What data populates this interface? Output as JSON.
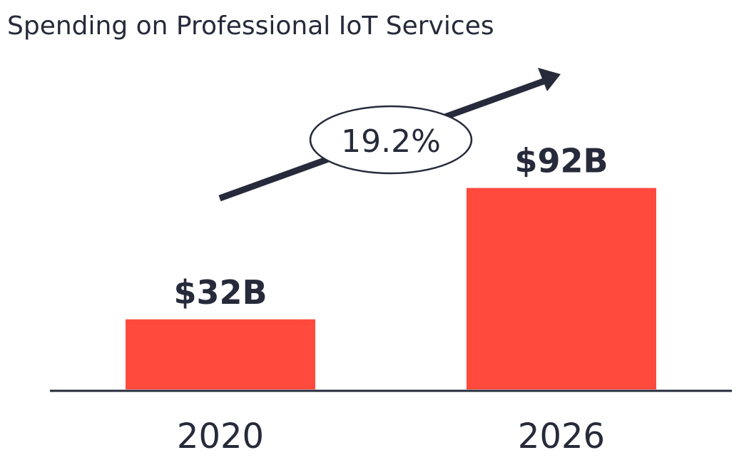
{
  "chart_data": {
    "type": "bar",
    "title": "Spending on Professional IoT Services",
    "categories": [
      "2020",
      "2026"
    ],
    "values": [
      32,
      92
    ],
    "data_labels": [
      "$32B",
      "$92B"
    ],
    "ylim": [
      0,
      100
    ],
    "grid": false,
    "legend": "none",
    "annotation": {
      "text": "19.2%",
      "shape": "ellipse-on-arrow"
    },
    "colors": {
      "bar": "#ff4a3d",
      "text": "#262a3a",
      "arrow": "#262a3a",
      "axis": "#262a3a"
    }
  }
}
